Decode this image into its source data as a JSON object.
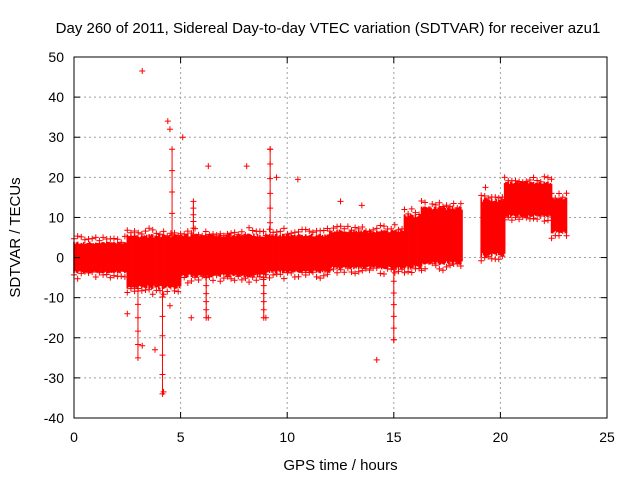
{
  "chart_data": {
    "type": "scatter",
    "title": "Day 260 of 2011, Sidereal Day-to-day VTEC variation (SDTVAR) for receiver azu1",
    "xlabel": "GPS time / hours",
    "ylabel": "SDTVAR / TECUs",
    "xlim": [
      0,
      25
    ],
    "ylim": [
      -40,
      50
    ],
    "xticks": [
      0,
      5,
      10,
      15,
      20,
      25
    ],
    "yticks": [
      -40,
      -30,
      -20,
      -10,
      0,
      10,
      20,
      30,
      40,
      50
    ],
    "grid": true,
    "marker": "+",
    "color": "#ff0000",
    "series": [
      {
        "name": "SDTVAR",
        "description_bands": [
          {
            "x": [
              0.0,
              2.5
            ],
            "y_low": -4,
            "y_high": 4
          },
          {
            "x": [
              2.5,
              5.0
            ],
            "y_low": -8,
            "y_high": 6
          },
          {
            "x": [
              5.0,
              9.0
            ],
            "y_low": -5,
            "y_high": 6
          },
          {
            "x": [
              9.0,
              12.0
            ],
            "y_low": -4,
            "y_high": 6
          },
          {
            "x": [
              12.0,
              15.5
            ],
            "y_low": -3,
            "y_high": 7
          },
          {
            "x": [
              15.5,
              16.3
            ],
            "y_low": -3,
            "y_high": 11
          },
          {
            "x": [
              16.3,
              18.2
            ],
            "y_low": -2,
            "y_high": 13
          },
          {
            "x": [
              19.1,
              20.2
            ],
            "y_low": 0,
            "y_high": 15
          },
          {
            "x": [
              20.2,
              22.4
            ],
            "y_low": 10,
            "y_high": 19
          },
          {
            "x": [
              22.4,
              23.1
            ],
            "y_low": 6,
            "y_high": 15
          }
        ],
        "outliers": [
          {
            "x": 3.2,
            "y": 46.5
          },
          {
            "x": 4.5,
            "y": 32
          },
          {
            "x": 4.4,
            "y": 34
          },
          {
            "x": 5.1,
            "y": 30
          },
          {
            "x": 6.3,
            "y": 22.8
          },
          {
            "x": 8.1,
            "y": 22.8
          },
          {
            "x": 9.2,
            "y": 27
          },
          {
            "x": 9.5,
            "y": 20
          },
          {
            "x": 10.5,
            "y": 19.5
          },
          {
            "x": 12.5,
            "y": 14
          },
          {
            "x": 13.5,
            "y": 13
          },
          {
            "x": 14.2,
            "y": -25.5
          },
          {
            "x": 15.0,
            "y": -20.5
          },
          {
            "x": 3.2,
            "y": -22
          },
          {
            "x": 3.8,
            "y": -23
          },
          {
            "x": 4.2,
            "y": -33.5
          },
          {
            "x": 4.5,
            "y": -12
          },
          {
            "x": 2.5,
            "y": -14
          },
          {
            "x": 19.3,
            "y": 17.5
          },
          {
            "x": 9.0,
            "y": -15
          },
          {
            "x": 6.3,
            "y": -15
          },
          {
            "x": 5.5,
            "y": -15
          }
        ],
        "spikes": [
          {
            "x": 4.6,
            "y_top": 27,
            "y_bottom": -5
          },
          {
            "x": 4.15,
            "y_top": -34,
            "y_bottom": -5
          },
          {
            "x": 9.2,
            "y_top": 27,
            "y_bottom": 5
          },
          {
            "x": 15.0,
            "y_top": -20.5,
            "y_bottom": -3
          },
          {
            "x": 3.0,
            "y_top": -25,
            "y_bottom": -5
          },
          {
            "x": 6.2,
            "y_top": -15,
            "y_bottom": -3
          },
          {
            "x": 8.9,
            "y_top": -15,
            "y_bottom": -3
          },
          {
            "x": 5.6,
            "y_top": 14,
            "y_bottom": 4
          }
        ]
      }
    ]
  }
}
